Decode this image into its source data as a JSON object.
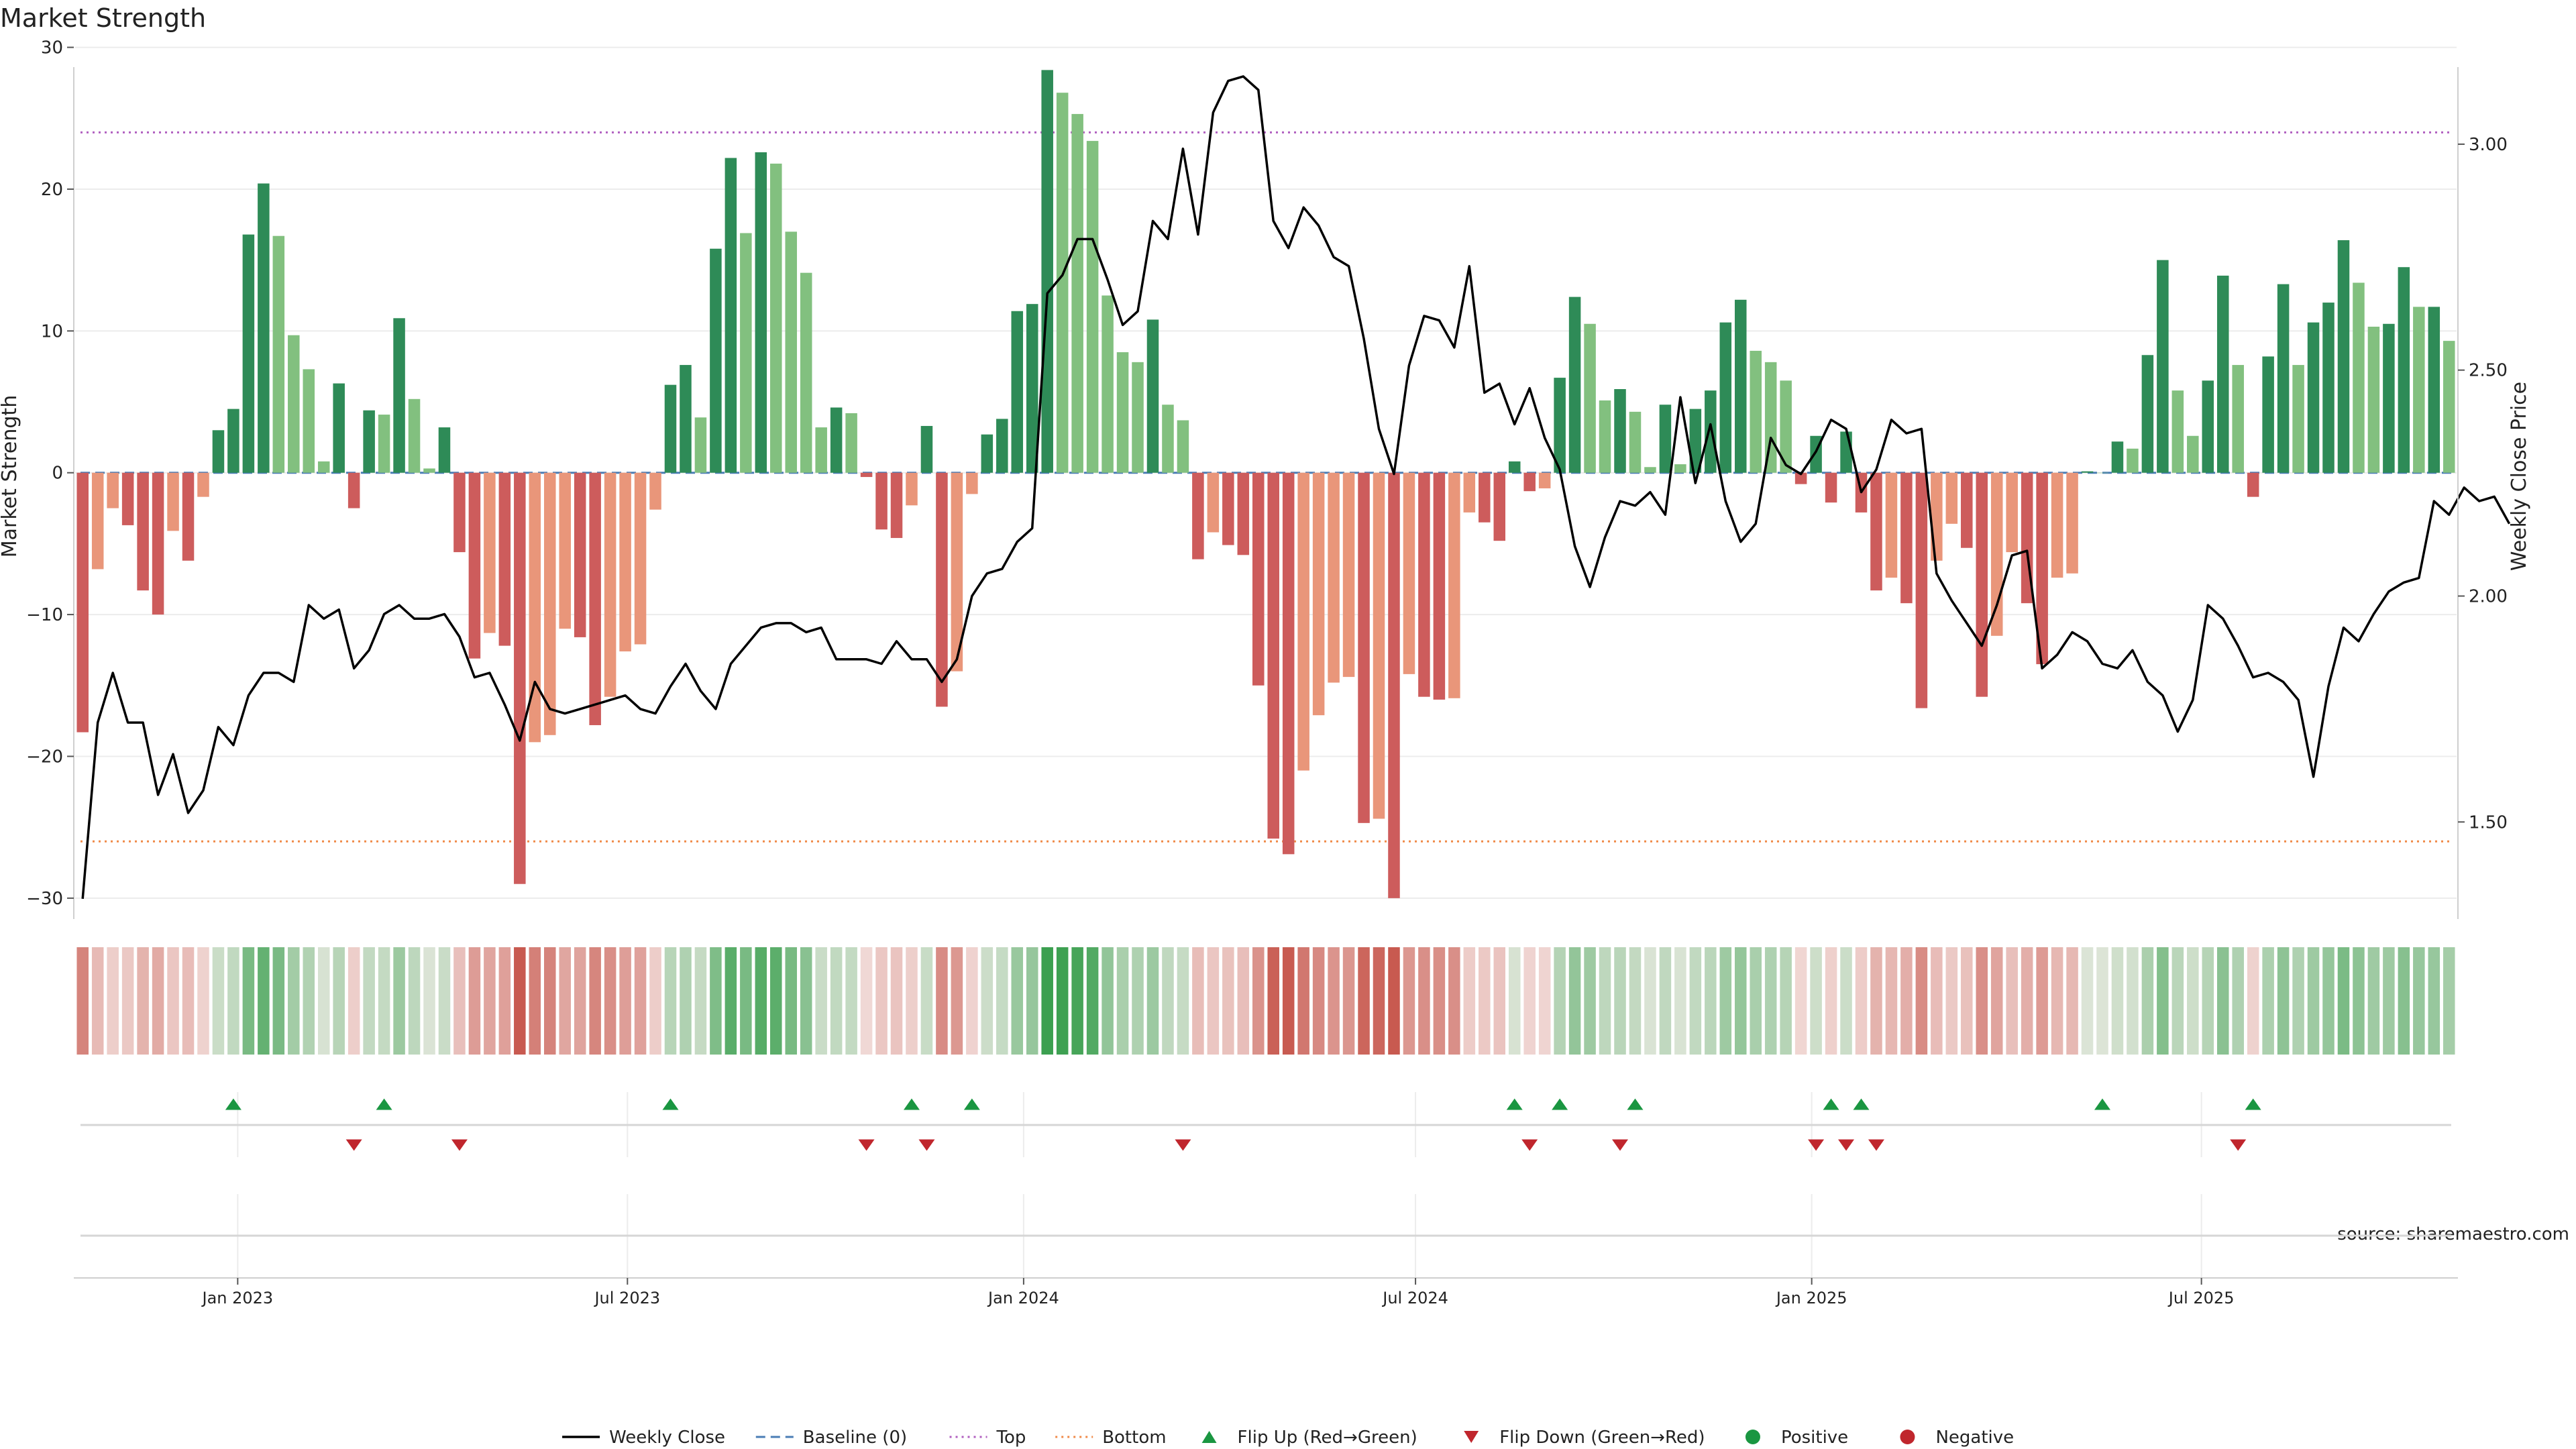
{
  "title": "Market Strength",
  "source_note": "source: sharemaestro.com",
  "colors": {
    "strong_green": "#2e8b57",
    "light_green": "#82c07f",
    "strong_red": "#cd5c5c",
    "light_red": "#e9967a",
    "price_line": "#000000",
    "baseline": "#4a7db5",
    "top_line": "#b15fc0",
    "bottom_line": "#f08a48",
    "flip_up": "#1a9641",
    "flip_down": "#c0262d"
  },
  "chart_data": {
    "type": "bar",
    "ylabel_left": "Market Strength",
    "ylabel_right": "Weekly Close Price",
    "ylim_left": [
      -31,
      30.5
    ],
    "yticks_left": [
      30,
      20,
      10,
      0,
      -10,
      -20,
      -30
    ],
    "ylim_right": [
      1.3,
      3.23
    ],
    "yticks_right": [
      3.0,
      2.5,
      2.0,
      1.5
    ],
    "ytick_labels_right": [
      "3.00",
      "2.50",
      "2.00",
      "1.50"
    ],
    "top_level": 24,
    "bottom_level": -26,
    "x_start": "2022-10-21",
    "week_step_days": 7,
    "xtick_labels": [
      "Jan 2023",
      "Jul 2023",
      "Jan 2024",
      "Jul 2024",
      "Jan 2025",
      "Jul 2025"
    ],
    "xtick_dates": [
      "2023-01-01",
      "2023-07-01",
      "2024-01-01",
      "2024-07-01",
      "2025-01-01",
      "2025-07-01"
    ],
    "strength": [
      -18.3,
      -6.8,
      -2.5,
      -3.7,
      -8.3,
      -10,
      -4.1,
      -6.2,
      -1.7,
      3,
      4.5,
      16.8,
      20.4,
      16.7,
      9.7,
      7.3,
      0.8,
      6.3,
      -2.5,
      4.4,
      4.1,
      10.9,
      5.2,
      0.3,
      3.2,
      -5.6,
      -13.1,
      -11.3,
      -12.2,
      -29,
      -19,
      -18.5,
      -11,
      -11.6,
      -17.8,
      -15.8,
      -12.6,
      -12.1,
      -2.6,
      6.2,
      7.6,
      3.9,
      15.8,
      22.2,
      16.9,
      22.6,
      21.8,
      17,
      14.1,
      3.2,
      4.6,
      4.2,
      -0.3,
      -4,
      -4.6,
      -2.3,
      3.3,
      -16.5,
      -14,
      -1.5,
      2.7,
      3.8,
      11.4,
      11.9,
      28.4,
      26.8,
      25.3,
      23.4,
      12.5,
      8.5,
      7.8,
      10.8,
      4.8,
      3.7,
      -6.1,
      -4.2,
      -5.1,
      -5.8,
      -15,
      -25.8,
      -26.9,
      -21,
      -17.1,
      -14.8,
      -14.4,
      -24.7,
      -24.4,
      -30,
      -14.2,
      -15.8,
      -16,
      -15.9,
      -2.8,
      -3.5,
      -4.8,
      0.8,
      -1.3,
      -1.1,
      6.7,
      12.4,
      10.5,
      5.1,
      5.9,
      4.3,
      0.4,
      4.8,
      0.6,
      4.5,
      5.8,
      10.6,
      12.2,
      8.6,
      7.8,
      6.5,
      -0.8,
      2.6,
      -2.1,
      2.9,
      -2.8,
      -8.3,
      -7.4,
      -9.2,
      -16.6,
      -6.2,
      -3.6,
      -5.3,
      -15.8,
      -11.5,
      -5.6,
      -9.2,
      -13.5,
      -7.4,
      -7.1,
      0.1,
      0,
      2.2,
      1.7,
      8.3,
      15,
      5.8,
      2.6,
      6.5,
      13.9,
      7.6,
      -1.7,
      8.2,
      13.3,
      7.6,
      10.6,
      12,
      16.4,
      13.4,
      10.3,
      10.5,
      14.5,
      11.7,
      11.7,
      9.3
    ],
    "weekly_close": [
      1.33,
      1.72,
      1.83,
      1.72,
      1.72,
      1.56,
      1.65,
      1.52,
      1.57,
      1.71,
      1.67,
      1.78,
      1.83,
      1.83,
      1.81,
      1.98,
      1.95,
      1.97,
      1.84,
      1.88,
      1.96,
      1.98,
      1.95,
      1.95,
      1.96,
      1.91,
      1.82,
      1.83,
      1.76,
      1.68,
      1.81,
      1.75,
      1.74,
      1.75,
      1.76,
      1.77,
      1.78,
      1.75,
      1.74,
      1.8,
      1.85,
      1.79,
      1.75,
      1.85,
      1.89,
      1.93,
      1.94,
      1.94,
      1.92,
      1.93,
      1.86,
      1.86,
      1.86,
      1.85,
      1.9,
      1.86,
      1.86,
      1.81,
      1.86,
      2.0,
      2.05,
      2.06,
      2.12,
      2.15,
      2.67,
      2.71,
      2.79,
      2.79,
      2.7,
      2.6,
      2.63,
      2.83,
      2.79,
      2.99,
      2.8,
      3.07,
      3.14,
      3.15,
      3.12,
      2.83,
      2.77,
      2.86,
      2.82,
      2.75,
      2.73,
      2.57,
      2.37,
      2.27,
      2.51,
      2.62,
      2.61,
      2.55,
      2.73,
      2.45,
      2.47,
      2.38,
      2.46,
      2.35,
      2.28,
      2.11,
      2.02,
      2.13,
      2.21,
      2.2,
      2.23,
      2.18,
      2.44,
      2.25,
      2.38,
      2.21,
      2.12,
      2.16,
      2.35,
      2.29,
      2.27,
      2.32,
      2.39,
      2.37,
      2.23,
      2.28,
      2.39,
      2.36,
      2.37,
      2.05,
      1.99,
      1.94,
      1.89,
      1.98,
      2.09,
      2.1,
      1.84,
      1.87,
      1.92,
      1.9,
      1.85,
      1.84,
      1.88,
      1.81,
      1.78,
      1.7,
      1.77,
      1.98,
      1.95,
      1.89,
      1.82,
      1.83,
      1.81,
      1.77,
      1.6,
      1.8,
      1.93,
      1.9,
      1.96,
      2.01,
      2.03,
      2.04,
      2.21,
      2.18,
      2.24,
      2.21,
      2.22,
      2.16
    ],
    "flips_up": [
      10,
      20,
      39,
      55,
      59,
      95,
      98,
      103,
      116,
      118,
      134,
      144
    ],
    "flips_down": [
      18,
      25,
      52,
      56,
      73,
      96,
      102,
      115,
      117,
      119,
      143
    ],
    "legend": {
      "position": "bottom-center",
      "items": [
        {
          "label": "Weekly Close",
          "kind": "line"
        },
        {
          "label": "Baseline (0)",
          "kind": "dashed"
        },
        {
          "label": "Top",
          "kind": "dotted-purple"
        },
        {
          "label": "Bottom",
          "kind": "dotted-orange"
        },
        {
          "label": "Flip Up (Red→Green)",
          "kind": "tri-up"
        },
        {
          "label": "Flip Down (Green→Red)",
          "kind": "tri-down"
        },
        {
          "label": "Positive",
          "kind": "dot-green"
        },
        {
          "label": "Negative",
          "kind": "dot-red"
        }
      ]
    }
  }
}
